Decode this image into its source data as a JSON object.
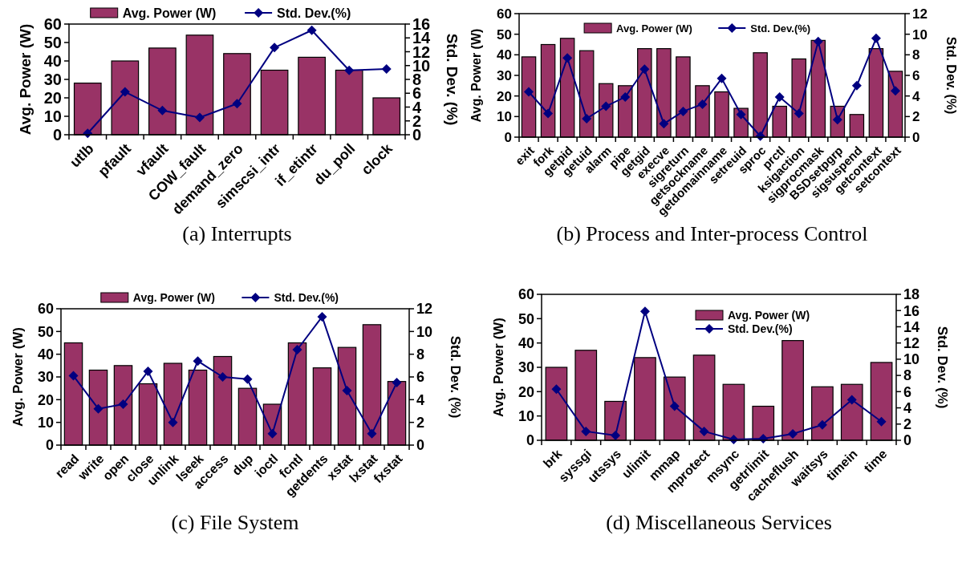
{
  "chart_data": [
    {
      "type": "bar",
      "title": "(a) Interrupts",
      "ylabel": "Avg. Power (W)",
      "y2label": "Std. Dev. (%)",
      "legend": "top",
      "marker": "diamond",
      "grid": false,
      "categories": [
        "utlb",
        "pfault",
        "vfault",
        "COW_fault",
        "demand_zero",
        "simscsi_intr",
        "if_etintr",
        "du_poll",
        "clock"
      ],
      "ylim": [
        0,
        60
      ],
      "yticks": [
        0,
        10,
        20,
        30,
        40,
        50,
        60
      ],
      "y2lim": [
        0,
        16
      ],
      "y2ticks": [
        0,
        2,
        4,
        6,
        8,
        10,
        12,
        14,
        16
      ],
      "series": [
        {
          "name": "Avg. Power (W)",
          "color": "#993366",
          "values": [
            28,
            40,
            47,
            54,
            44,
            35,
            42,
            35,
            20
          ]
        },
        {
          "name": "Std. Dev.(%)",
          "type": "line",
          "axis": "y2",
          "color": "#000080",
          "values": [
            0.2,
            6.2,
            3.5,
            2.5,
            4.5,
            12.6,
            15.1,
            9.3,
            9.5
          ]
        }
      ]
    },
    {
      "type": "bar",
      "title": "(b) Process and Inter-process Control",
      "ylabel": "Avg. Power (W)",
      "y2label": "Std. Dev. (%)",
      "legend": "top center",
      "marker": "diamond",
      "grid": false,
      "categories": [
        "exit",
        "fork",
        "getpid",
        "getuid",
        "alarm",
        "pipe",
        "getgid",
        "execve",
        "sigreturn",
        "getsockname",
        "getdomainname",
        "setreuid",
        "sproc",
        "prctl",
        "ksigaction",
        "sigprocmask",
        "BSDsetpgrp",
        "sigsuspend",
        "getcontext",
        "setcontext"
      ],
      "ylim": [
        0,
        60
      ],
      "yticks": [
        0,
        10,
        20,
        30,
        40,
        50,
        60
      ],
      "y2lim": [
        0,
        12
      ],
      "y2ticks": [
        0,
        2,
        4,
        6,
        8,
        10,
        12
      ],
      "series": [
        {
          "name": "Avg. Power (W)",
          "color": "#993366",
          "values": [
            39,
            45,
            48,
            42,
            26,
            25,
            43,
            43,
            39,
            25,
            22,
            14,
            41,
            15,
            38,
            47,
            15,
            11,
            43,
            32
          ]
        },
        {
          "name": "Std. Dev.(%)",
          "type": "line",
          "axis": "y2",
          "color": "#000080",
          "values": [
            4.4,
            2.3,
            7.7,
            1.8,
            3.0,
            3.9,
            6.6,
            1.3,
            2.5,
            3.2,
            5.7,
            2.2,
            0.1,
            3.9,
            2.3,
            9.3,
            1.7,
            5.0,
            9.6,
            4.5
          ]
        }
      ]
    },
    {
      "type": "bar",
      "title": "(c) File System",
      "ylabel": "Avg. Power (W)",
      "y2label": "Std. Dev. (%)",
      "legend": "top",
      "marker": "diamond",
      "grid": false,
      "categories": [
        "read",
        "write",
        "open",
        "close",
        "unlink",
        "lseek",
        "access",
        "dup",
        "ioctl",
        "fcntl",
        "getdents",
        "xstat",
        "lxstat",
        "fxstat"
      ],
      "ylim": [
        0,
        60
      ],
      "yticks": [
        0,
        10,
        20,
        30,
        40,
        50,
        60
      ],
      "y2lim": [
        0,
        12
      ],
      "y2ticks": [
        0,
        2,
        4,
        6,
        8,
        10,
        12
      ],
      "series": [
        {
          "name": "Avg. Power (W)",
          "color": "#993366",
          "values": [
            45,
            33,
            35,
            27,
            36,
            33,
            39,
            25,
            18,
            45,
            34,
            43,
            53,
            28
          ]
        },
        {
          "name": "Std. Dev.(%)",
          "type": "line",
          "axis": "y2",
          "color": "#000080",
          "values": [
            6.1,
            3.2,
            3.6,
            6.5,
            2.0,
            7.4,
            6.0,
            5.8,
            1.0,
            8.4,
            11.3,
            4.8,
            1.0,
            5.5
          ]
        }
      ]
    },
    {
      "type": "bar",
      "title": "(d) Miscellaneous Services",
      "ylabel": "Avg. Power (W)",
      "y2label": "Std. Dev. (%)",
      "legend": "top right",
      "marker": "diamond",
      "grid": false,
      "categories": [
        "brk",
        "syssgi",
        "utssys",
        "ulimit",
        "mmap",
        "mprotect",
        "msync",
        "getrlimit",
        "cacheflush",
        "waitsys",
        "timein",
        "time"
      ],
      "ylim": [
        0,
        60
      ],
      "yticks": [
        0,
        10,
        20,
        30,
        40,
        50,
        60
      ],
      "y2lim": [
        0,
        18
      ],
      "y2ticks": [
        0,
        2,
        4,
        6,
        8,
        10,
        12,
        14,
        16,
        18
      ],
      "series": [
        {
          "name": "Avg. Power (W)",
          "color": "#993366",
          "values": [
            30,
            37,
            16,
            34,
            26,
            35,
            23,
            14,
            41,
            22,
            23,
            32
          ]
        },
        {
          "name": "Std. Dev.(%)",
          "type": "line",
          "axis": "y2",
          "color": "#000080",
          "values": [
            6.3,
            1.1,
            0.6,
            15.9,
            4.2,
            1.1,
            0.1,
            0.2,
            0.8,
            1.9,
            5.0,
            2.3
          ]
        }
      ]
    }
  ]
}
